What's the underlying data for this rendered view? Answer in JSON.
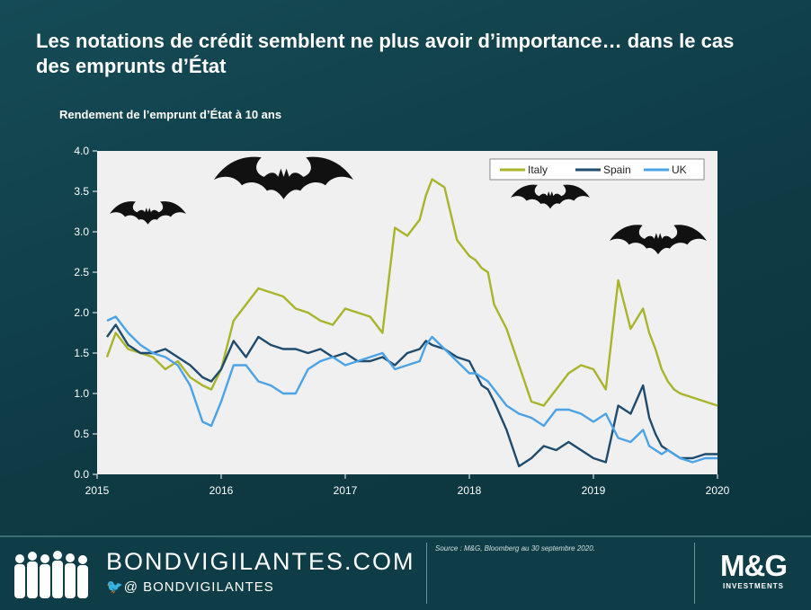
{
  "slide": {
    "title": "Les notations de crédit semblent ne plus avoir d’importance… dans le cas des emprunts d’État",
    "subtitle": "Rendement de l’emprunt d’État à 10 ans"
  },
  "footer": {
    "site": "BONDVIGILANTES.COM",
    "handle": "BONDVIGILANTES",
    "handle_prefix_icons": "twitter-icon @",
    "source": "Source : M&G, Bloomberg au 30 septembre 2020.",
    "logo_main": "M&G",
    "logo_sub": "INVESTMENTS"
  },
  "colors": {
    "italy": "#a8b42a",
    "spain": "#1e4b6e",
    "uk": "#4aa3e6",
    "plot_bg": "#f0f0f0",
    "background": "#0f3f49"
  },
  "chart_data": {
    "type": "line",
    "title": "Rendement de l’emprunt d’État à 10 ans",
    "xlabel": "",
    "ylabel": "",
    "xlim": [
      2015,
      2020
    ],
    "ylim": [
      0,
      4
    ],
    "x_ticks": [
      "2015",
      "2016",
      "2017",
      "2018",
      "2019",
      "2020"
    ],
    "y_ticks": [
      "0.0",
      "0.5",
      "1.0",
      "1.5",
      "2.0",
      "2.5",
      "3.0",
      "3.5",
      "4.0"
    ],
    "legend_position": "top-right",
    "grid": false,
    "x": [
      2015.08,
      2015.15,
      2015.25,
      2015.35,
      2015.45,
      2015.55,
      2015.65,
      2015.75,
      2015.85,
      2015.92,
      2016.0,
      2016.1,
      2016.2,
      2016.3,
      2016.4,
      2016.5,
      2016.6,
      2016.7,
      2016.8,
      2016.9,
      2017.0,
      2017.1,
      2017.2,
      2017.3,
      2017.4,
      2017.5,
      2017.6,
      2017.65,
      2017.7,
      2017.8,
      2017.9,
      2018.0,
      2018.05,
      2018.1,
      2018.15,
      2018.2,
      2018.3,
      2018.4,
      2018.5,
      2018.6,
      2018.7,
      2018.8,
      2018.9,
      2019.0,
      2019.1,
      2019.2,
      2019.3,
      2019.4,
      2019.45,
      2019.5,
      2019.55,
      2019.6,
      2019.65,
      2019.7,
      2019.8,
      2019.9,
      2020.0
    ],
    "series": [
      {
        "name": "Italy",
        "values": [
          1.45,
          1.75,
          1.55,
          1.5,
          1.45,
          1.3,
          1.4,
          1.2,
          1.1,
          1.05,
          1.3,
          1.9,
          2.1,
          2.3,
          2.25,
          2.2,
          2.05,
          2.0,
          1.9,
          1.85,
          2.05,
          2.0,
          1.95,
          1.75,
          3.05,
          2.95,
          3.15,
          3.45,
          3.65,
          3.55,
          2.9,
          2.7,
          2.65,
          2.55,
          2.5,
          2.1,
          1.8,
          1.35,
          0.9,
          0.85,
          1.05,
          1.25,
          1.35,
          1.3,
          1.05,
          2.4,
          1.8,
          2.05,
          1.75,
          1.55,
          1.3,
          1.15,
          1.05,
          1.0,
          0.95,
          0.9,
          0.85
        ]
      },
      {
        "name": "Spain",
        "values": [
          1.7,
          1.85,
          1.6,
          1.5,
          1.5,
          1.55,
          1.45,
          1.35,
          1.2,
          1.15,
          1.3,
          1.65,
          1.45,
          1.7,
          1.6,
          1.55,
          1.55,
          1.5,
          1.55,
          1.45,
          1.5,
          1.4,
          1.4,
          1.45,
          1.35,
          1.5,
          1.55,
          1.65,
          1.6,
          1.55,
          1.45,
          1.4,
          1.25,
          1.1,
          1.05,
          0.9,
          0.55,
          0.1,
          0.2,
          0.35,
          0.3,
          0.4,
          0.3,
          0.2,
          0.15,
          0.85,
          0.75,
          1.1,
          0.7,
          0.5,
          0.35,
          0.3,
          0.25,
          0.2,
          0.2,
          0.25,
          0.25
        ]
      },
      {
        "name": "UK",
        "values": [
          1.9,
          1.95,
          1.75,
          1.6,
          1.5,
          1.45,
          1.35,
          1.1,
          0.65,
          0.6,
          0.9,
          1.35,
          1.35,
          1.15,
          1.1,
          1.0,
          1.0,
          1.3,
          1.4,
          1.45,
          1.35,
          1.4,
          1.45,
          1.5,
          1.3,
          1.35,
          1.4,
          1.6,
          1.7,
          1.55,
          1.4,
          1.25,
          1.25,
          1.2,
          1.15,
          1.05,
          0.85,
          0.75,
          0.7,
          0.6,
          0.8,
          0.8,
          0.75,
          0.65,
          0.75,
          0.45,
          0.4,
          0.55,
          0.35,
          0.3,
          0.25,
          0.3,
          0.25,
          0.2,
          0.15,
          0.2,
          0.2
        ]
      }
    ]
  }
}
